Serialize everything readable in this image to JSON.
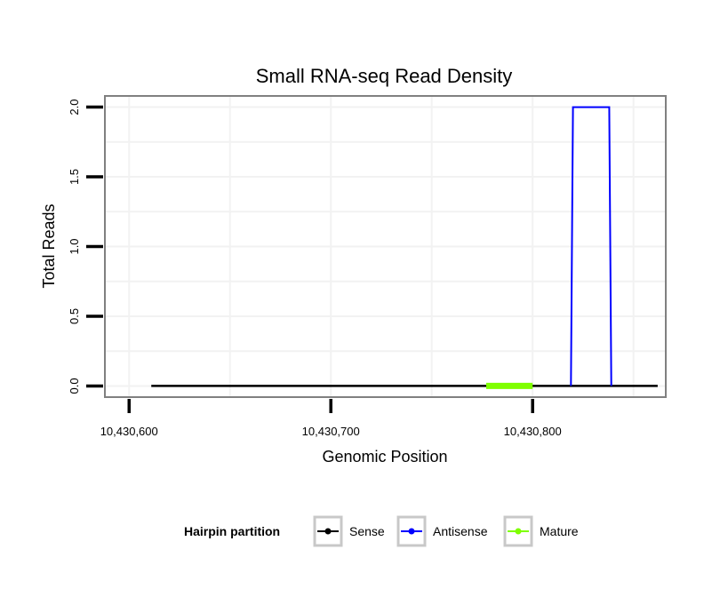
{
  "chart_data": {
    "type": "line",
    "title": "Small RNA-seq Read Density",
    "xlabel": "Genomic Position",
    "ylabel": "Total Reads",
    "xlim": [
      10430588,
      10430866
    ],
    "ylim": [
      -0.08,
      2.08
    ],
    "x_ticks": [
      10430600,
      10430700,
      10430800
    ],
    "x_tick_labels": [
      "10,430,600",
      "10,430,700",
      "10,430,800"
    ],
    "y_ticks": [
      0.0,
      0.5,
      1.0,
      1.5,
      2.0
    ],
    "y_tick_labels": [
      "0.0",
      "0.5",
      "1.0",
      "1.5",
      "2.0"
    ],
    "grid": true,
    "legend": {
      "title": "Hairpin partition",
      "position": "bottom",
      "entries": [
        {
          "name": "Sense",
          "color": "#000000"
        },
        {
          "name": "Antisense",
          "color": "#0000ff"
        },
        {
          "name": "Mature",
          "color": "#7fff00"
        }
      ]
    },
    "series": [
      {
        "name": "Sense",
        "color": "#000000",
        "x": [
          10430611,
          10430862
        ],
        "y": [
          0,
          0
        ]
      },
      {
        "name": "Antisense",
        "color": "#0000ff",
        "x": [
          10430819,
          10430820,
          10430838,
          10430839
        ],
        "y": [
          0,
          2,
          2,
          0
        ]
      },
      {
        "name": "Mature",
        "color": "#7fff00",
        "x": [
          10430777,
          10430800
        ],
        "y": [
          0,
          0
        ]
      }
    ]
  }
}
